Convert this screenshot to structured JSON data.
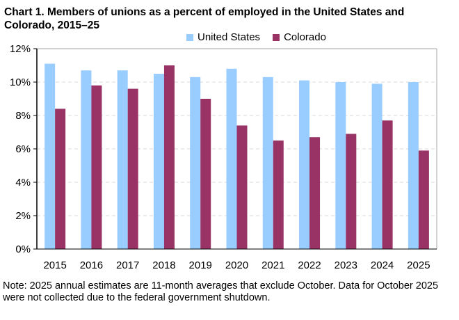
{
  "chart_data": {
    "type": "bar",
    "title": "Chart 1. Members of unions as a percent of employed  in the United States and Colorado, 2015–25",
    "categories": [
      "2015",
      "2016",
      "2017",
      "2018",
      "2019",
      "2020",
      "2021",
      "2022",
      "2023",
      "2024",
      "2025"
    ],
    "series": [
      {
        "name": "United States",
        "color": "#99ccff",
        "values": [
          11.1,
          10.7,
          10.7,
          10.5,
          10.3,
          10.8,
          10.3,
          10.1,
          10.0,
          9.9,
          10.0
        ]
      },
      {
        "name": "Colorado",
        "color": "#993366",
        "values": [
          8.4,
          9.8,
          9.6,
          11.0,
          9.0,
          7.4,
          6.5,
          6.7,
          6.9,
          7.7,
          5.9
        ]
      }
    ],
    "ylim": [
      0,
      12
    ],
    "yticks": [
      "0%",
      "2%",
      "4%",
      "6%",
      "8%",
      "10%",
      "12%"
    ],
    "grid": true,
    "legend": "top",
    "xlabel": "",
    "ylabel": ""
  },
  "note": "Note: 2025 annual estimates are 11-month averages that exclude October. Data for October 2025 were not collected due to the federal government shutdown."
}
